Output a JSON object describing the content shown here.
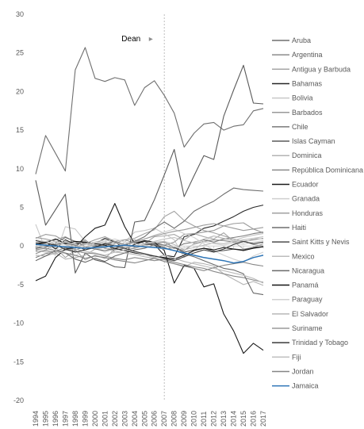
{
  "chart_data": {
    "type": "line",
    "x": [
      "1994",
      "1995",
      "1996",
      "1997",
      "1998",
      "1999",
      "2000",
      "2001",
      "2002",
      "2003",
      "2004",
      "2005",
      "2006",
      "2007",
      "2008",
      "2009",
      "2010",
      "2011",
      "2012",
      "2013",
      "2014",
      "2015",
      "2016",
      "2017"
    ],
    "ylim": [
      -20,
      30
    ],
    "yticks": [
      "30",
      "25",
      "20",
      "15",
      "10",
      "5",
      "0",
      "-5",
      "-10",
      "-15",
      "-20"
    ],
    "grid": false,
    "legend_position": "right",
    "annotation": {
      "label": "Dean",
      "x": "2007",
      "arrow_symbol": "▸"
    },
    "series": [
      {
        "name": "Aruba",
        "color": "#6f6f6f",
        "values": [
          9.3,
          14.3,
          12.0,
          9.7,
          22.8,
          25.7,
          21.7,
          21.3,
          21.8,
          21.5,
          18.2,
          20.5,
          21.4,
          19.5,
          17.2,
          12.8,
          14.6,
          15.8,
          16.0,
          15.0,
          15.5,
          15.7,
          17.5,
          17.8
        ]
      },
      {
        "name": "Argentina",
        "color": "#8c8c8c",
        "values": [
          -1.0,
          -0.5,
          0.2,
          -0.5,
          -0.3,
          0.4,
          0.2,
          0.6,
          -0.8,
          -0.5,
          -0.3,
          0.1,
          0.3,
          0.5,
          -0.2,
          -0.6,
          0.3,
          0.6,
          0.8,
          0.7,
          0.5,
          0.6,
          0.8,
          1.0
        ]
      },
      {
        "name": "Antigua y Barbuda",
        "color": "#a6a6a6",
        "values": [
          0.5,
          0.2,
          -0.2,
          -1.5,
          -0.5,
          -1.8,
          -1.2,
          -1.6,
          -0.4,
          0.2,
          0.8,
          0.3,
          1.2,
          1.3,
          1.5,
          0.8,
          1.6,
          1.2,
          0.9,
          1.7,
          0.6,
          -0.4,
          -0.2,
          0.3
        ]
      },
      {
        "name": "Bahamas",
        "color": "#262626",
        "values": [
          0.3,
          0.5,
          -0.4,
          0.8,
          0.2,
          0.5,
          0.3,
          1.0,
          0.5,
          -0.3,
          0.2,
          0.6,
          0.2,
          -1.2,
          -1.4,
          1.2,
          1.5,
          2.3,
          2.6,
          3.2,
          3.8,
          4.5,
          5.0,
          5.3
        ]
      },
      {
        "name": "Bolivia",
        "color": "#c8c8c8",
        "values": [
          2.8,
          -0.5,
          -1.2,
          2.5,
          2.2,
          0.6,
          -0.3,
          -0.8,
          -0.3,
          0.5,
          1.8,
          2.0,
          2.3,
          1.6,
          0.8,
          -1.5,
          -0.6,
          0.6,
          1.3,
          0.9,
          0.7,
          0.4,
          1.0,
          0.9
        ]
      },
      {
        "name": "Barbados",
        "color": "#999999",
        "values": [
          1.0,
          1.5,
          1.3,
          0.6,
          0.3,
          0.8,
          -0.2,
          0.1,
          0.6,
          0.8,
          0.4,
          0.7,
          0.2,
          0.1,
          0.5,
          1.5,
          1.6,
          1.8,
          2.0,
          2.6,
          2.9,
          3.0,
          2.2,
          1.7
        ]
      },
      {
        "name": "Chile",
        "color": "#7a7a7a",
        "values": [
          -1.5,
          -1.0,
          -0.7,
          -0.2,
          -0.5,
          -0.1,
          0.1,
          -0.3,
          -0.5,
          -0.3,
          0.0,
          0.2,
          0.4,
          0.1,
          -0.3,
          0.3,
          0.5,
          0.8,
          0.5,
          0.9,
          1.1,
          1.3,
          1.6,
          1.8
        ]
      },
      {
        "name": "Islas Cayman",
        "color": "#5a5a5a",
        "values": [
          8.5,
          2.7,
          4.7,
          6.7,
          -3.5,
          -0.9,
          -1.8,
          -2.1,
          -2.7,
          -2.8,
          3.1,
          3.3,
          6.0,
          9.2,
          12.5,
          6.4,
          9.1,
          11.7,
          11.2,
          16.8,
          20.2,
          23.4,
          18.5,
          18.4
        ]
      },
      {
        "name": "Dominica",
        "color": "#b3b3b3",
        "values": [
          -1.2,
          -1.3,
          -0.9,
          -1.7,
          -1.5,
          -1.2,
          -0.4,
          -0.2,
          -0.8,
          -0.9,
          -1.1,
          -1.4,
          -1.6,
          -1.8,
          -2.3,
          -2.7,
          -2.1,
          -2.3,
          -2.6,
          -3.6,
          -4.3,
          -5.0,
          -4.6,
          -5.1
        ]
      },
      {
        "name": "República Dominicana",
        "color": "#8a8a8a",
        "values": [
          -0.7,
          -0.6,
          -0.8,
          -0.5,
          -0.7,
          -0.9,
          -1.0,
          -1.3,
          -1.6,
          -1.8,
          -1.5,
          -1.7,
          -1.9,
          -1.7,
          -2.1,
          -2.4,
          -2.7,
          -2.9,
          -3.3,
          -3.6,
          -3.9,
          -4.1,
          -4.4,
          -4.7
        ]
      },
      {
        "name": "Ecuador",
        "color": "#1a1a1a",
        "values": [
          -4.5,
          -3.9,
          -1.5,
          -0.4,
          -0.2,
          1.2,
          2.3,
          2.7,
          5.5,
          2.5,
          0.3,
          0.7,
          0.5,
          -0.6,
          -4.8,
          -2.5,
          -2.9,
          -5.3,
          -4.9,
          -8.8,
          -11.0,
          -13.9,
          -12.6,
          -13.5
        ]
      },
      {
        "name": "Granada",
        "color": "#cfcfcf",
        "values": [
          -0.4,
          0.1,
          -0.7,
          -1.0,
          -1.3,
          -0.3,
          0.3,
          0.6,
          0.0,
          -0.3,
          0.6,
          0.9,
          1.4,
          1.8,
          2.2,
          1.6,
          1.1,
          0.3,
          -0.6,
          -1.2,
          -1.7,
          -2.1,
          -1.3,
          -0.8
        ]
      },
      {
        "name": "Honduras",
        "color": "#a0a0a0",
        "values": [
          0.4,
          0.6,
          0.8,
          1.2,
          0.5,
          0.3,
          0.0,
          -0.2,
          0.3,
          0.8,
          1.0,
          1.6,
          2.1,
          3.8,
          4.5,
          3.3,
          2.6,
          2.0,
          1.7,
          1.3,
          0.9,
          0.6,
          0.2,
          0.0
        ]
      },
      {
        "name": "Haiti",
        "color": "#6e6e6e",
        "values": [
          0.0,
          -0.2,
          0.4,
          1.1,
          0.6,
          -0.1,
          -0.4,
          -0.6,
          -0.3,
          0.1,
          0.6,
          1.2,
          2.3,
          3.1,
          2.3,
          3.2,
          4.5,
          5.2,
          5.8,
          6.7,
          7.5,
          7.3,
          7.2,
          7.1
        ]
      },
      {
        "name": "Saint Kitts y Nevis",
        "color": "#4d4d4d",
        "values": [
          -0.3,
          -0.1,
          0.2,
          0.4,
          0.1,
          -0.5,
          -0.2,
          0.3,
          0.5,
          0.2,
          -0.1,
          0.3,
          0.1,
          -0.4,
          -0.2,
          -0.8,
          -0.5,
          -0.3,
          -0.7,
          -0.6,
          -0.4,
          -0.5,
          -0.2,
          -0.1
        ]
      },
      {
        "name": "Mexico",
        "color": "#bcbcbc",
        "values": [
          0.0,
          -0.2,
          0.1,
          0.3,
          0.0,
          -0.3,
          0.2,
          0.4,
          0.1,
          -0.2,
          0.0,
          0.3,
          0.5,
          0.6,
          0.2,
          -0.5,
          -0.2,
          0.1,
          0.4,
          0.3,
          0.6,
          0.8,
          1.0,
          1.2
        ]
      },
      {
        "name": "Nicaragua",
        "color": "#6a6a6a",
        "values": [
          -1.9,
          -1.3,
          -0.6,
          -0.9,
          -1.7,
          -2.1,
          -1.6,
          -2.0,
          -1.3,
          -0.9,
          -0.5,
          -0.3,
          0.2,
          -0.2,
          -0.6,
          -1.0,
          -1.4,
          -1.9,
          -2.4,
          -2.9,
          -3.1,
          -3.6,
          -6.1,
          -6.3
        ]
      },
      {
        "name": "Panamá",
        "color": "#141414",
        "values": [
          0.2,
          0.4,
          0.9,
          0.3,
          0.6,
          0.5,
          0.3,
          0.1,
          -0.3,
          -0.6,
          -0.9,
          -1.1,
          -1.3,
          -1.5,
          -1.7,
          -1.2,
          -0.6,
          -0.3,
          -0.5,
          -0.2,
          -0.4,
          -0.6,
          -0.3,
          -0.1
        ]
      },
      {
        "name": "Paraguay",
        "color": "#d2d2d2",
        "values": [
          0.8,
          0.6,
          0.3,
          0.5,
          0.2,
          -0.1,
          0.4,
          0.6,
          0.9,
          0.5,
          0.3,
          0.1,
          -0.2,
          -0.4,
          -0.1,
          -0.3,
          0.2,
          0.5,
          0.3,
          0.1,
          0.4,
          0.2,
          0.5,
          0.7
        ]
      },
      {
        "name": "El Salvador",
        "color": "#b8b8b8",
        "values": [
          -0.6,
          -0.8,
          -1.0,
          -0.6,
          -0.4,
          -0.7,
          -0.9,
          -1.2,
          -0.8,
          -0.5,
          -0.8,
          -1.1,
          -1.5,
          -1.2,
          -1.6,
          -2.0,
          -2.3,
          -2.6,
          -2.9,
          -3.2,
          -3.5,
          -3.8,
          -4.2,
          -4.8
        ]
      },
      {
        "name": "Suriname",
        "color": "#9a9a9a",
        "values": [
          1.1,
          0.9,
          0.6,
          0.2,
          -0.3,
          0.3,
          0.8,
          1.2,
          0.6,
          0.2,
          0.5,
          0.9,
          1.3,
          1.6,
          1.9,
          2.1,
          2.4,
          2.7,
          2.9,
          2.6,
          2.3,
          2.0,
          2.2,
          2.4
        ]
      },
      {
        "name": "Trinidad y Tobago",
        "color": "#3a3a3a",
        "values": [
          0.7,
          0.4,
          0.1,
          -0.4,
          -0.8,
          -0.5,
          -0.1,
          0.3,
          0.0,
          -0.3,
          -0.7,
          -1.0,
          -1.3,
          -1.6,
          -1.9,
          -1.4,
          -0.9,
          -0.5,
          -0.8,
          -0.4,
          0.2,
          0.6,
          0.3,
          0.5
        ]
      },
      {
        "name": "Fiji",
        "color": "#c0c0c0",
        "values": [
          -0.2,
          0.3,
          0.6,
          0.2,
          -0.2,
          0.2,
          0.5,
          0.8,
          0.4,
          0.1,
          -0.2,
          0.3,
          0.6,
          0.9,
          1.1,
          0.7,
          0.4,
          0.9,
          1.3,
          1.0,
          0.7,
          1.1,
          1.4,
          1.6
        ]
      },
      {
        "name": "Jordan",
        "color": "#858585",
        "values": [
          -0.5,
          -0.3,
          -0.6,
          -0.9,
          -1.2,
          -1.6,
          -1.3,
          -1.5,
          -1.8,
          -2.0,
          -2.2,
          -1.9,
          -1.6,
          -2.0,
          -2.3,
          -2.6,
          -2.9,
          -3.2,
          -2.8,
          -2.5,
          -2.3,
          -2.1,
          -2.4,
          -2.6
        ]
      },
      {
        "name": "Jamaica",
        "color": "#2e75b6",
        "values": [
          0.2,
          0.1,
          0.0,
          -0.1,
          -0.2,
          -0.3,
          -0.2,
          -0.1,
          0.0,
          0.1,
          0.0,
          -0.1,
          -0.2,
          -0.3,
          -0.6,
          -0.9,
          -1.2,
          -1.5,
          -1.7,
          -1.9,
          -2.2,
          -2.0,
          -1.5,
          -1.2
        ]
      }
    ]
  }
}
